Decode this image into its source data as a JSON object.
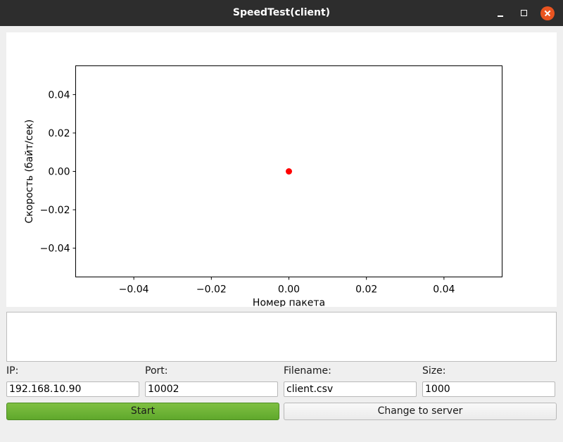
{
  "window": {
    "title": "SpeedTest(client)"
  },
  "chart_data": {
    "type": "scatter",
    "xlabel": "Номер пакета",
    "ylabel": "Скорость (байт/сек)",
    "xlim": [
      -0.055,
      0.055
    ],
    "ylim": [
      -0.055,
      0.055
    ],
    "x_ticks": [
      -0.04,
      -0.02,
      0.0,
      0.02,
      0.04
    ],
    "y_ticks": [
      -0.04,
      -0.02,
      0.0,
      0.02,
      0.04
    ],
    "x_tick_labels": [
      "−0.04",
      "−0.02",
      "0.00",
      "0.02",
      "0.04"
    ],
    "y_tick_labels": [
      "−0.04",
      "−0.02",
      "0.00",
      "0.02",
      "0.04"
    ],
    "grid": false,
    "series": [
      {
        "color": "#ff0000",
        "points": [
          {
            "x": 0.0,
            "y": 0.0
          }
        ]
      }
    ]
  },
  "form": {
    "ip_label": "IP:",
    "ip_value": "192.168.10.90",
    "port_label": "Port:",
    "port_value": "10002",
    "filename_label": "Filename:",
    "filename_value": "client.csv",
    "size_label": "Size:",
    "size_value": "1000"
  },
  "buttons": {
    "start_label": "Start",
    "change_label": "Change to server"
  },
  "log": {
    "text": ""
  }
}
